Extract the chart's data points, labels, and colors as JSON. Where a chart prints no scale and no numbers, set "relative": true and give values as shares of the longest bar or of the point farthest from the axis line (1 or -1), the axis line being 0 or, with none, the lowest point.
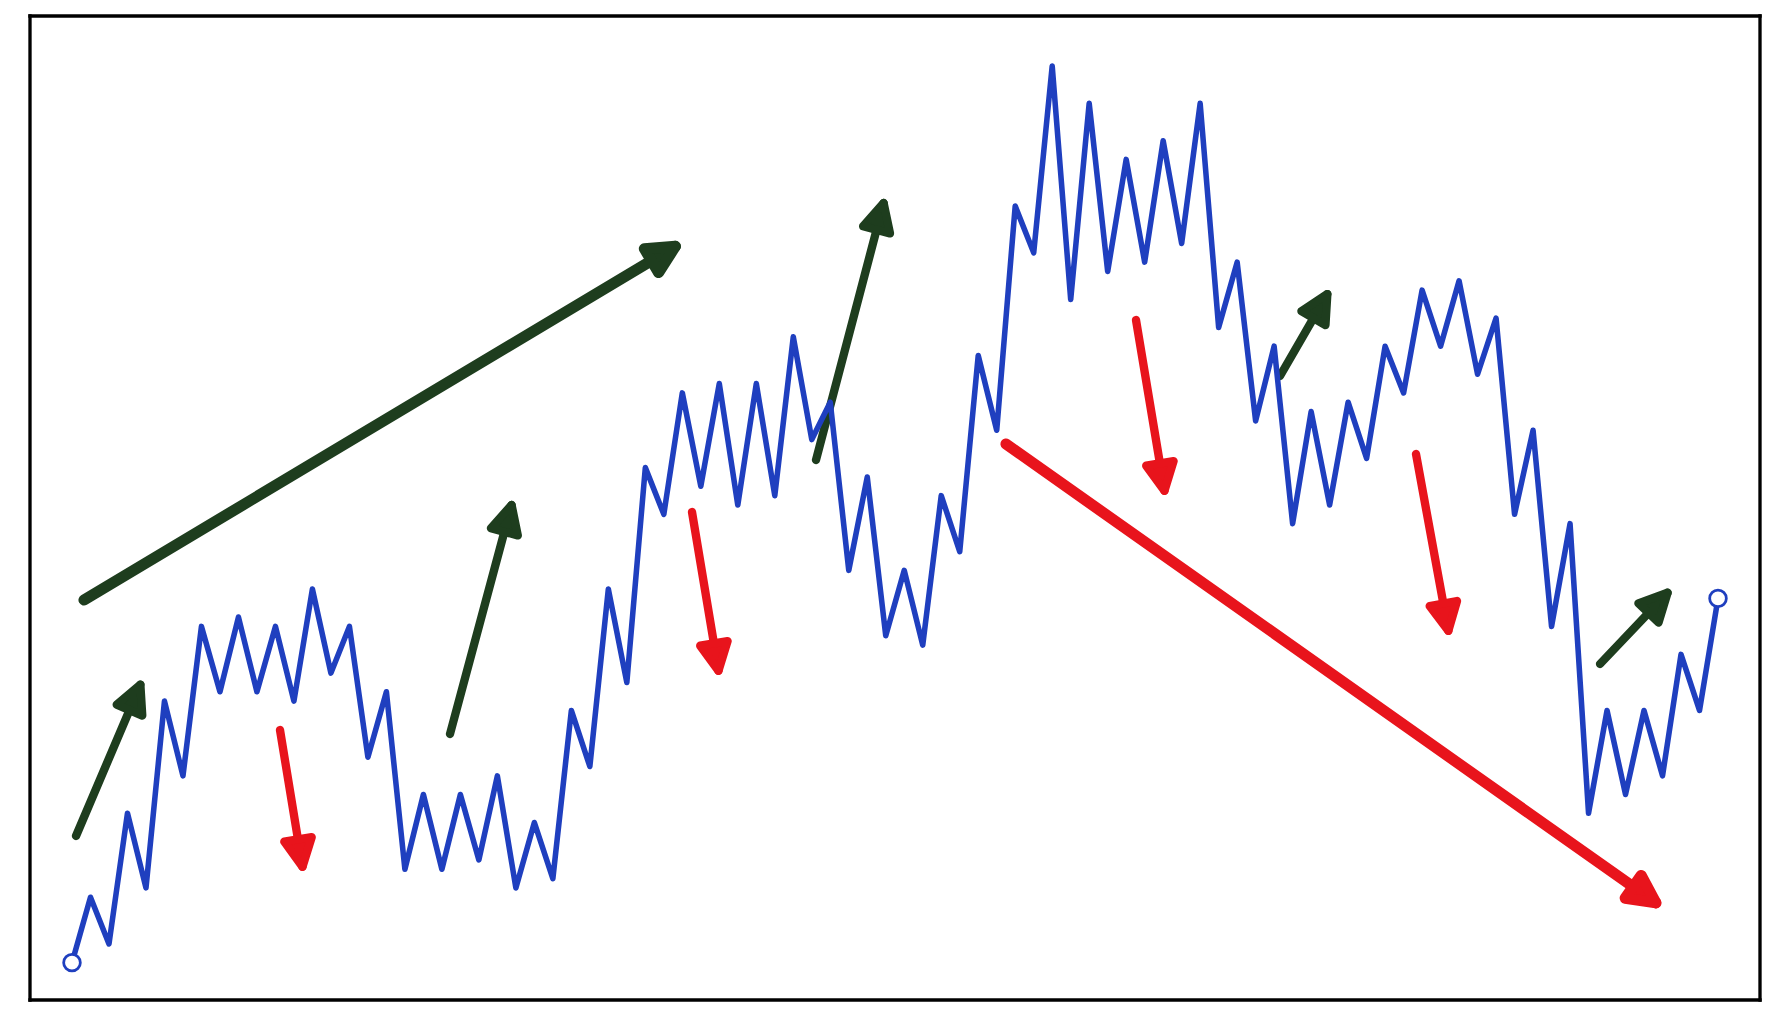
{
  "chart_data": {
    "type": "line",
    "relative": true,
    "line_style": "solid",
    "categories": [
      null,
      null,
      null,
      null,
      null,
      null,
      null,
      null,
      null,
      null,
      null,
      null,
      null,
      null,
      null,
      null,
      null,
      null,
      null,
      null,
      null,
      null,
      null,
      null,
      null,
      null,
      null,
      null,
      null,
      null,
      null,
      null,
      null,
      null,
      null,
      null,
      null,
      null,
      null,
      null,
      null,
      null,
      null,
      null,
      null,
      null,
      null,
      null,
      null,
      null,
      null,
      null,
      null,
      null,
      null,
      null,
      null,
      null,
      null,
      null,
      null,
      null,
      null,
      null,
      null,
      null,
      null,
      null,
      null,
      null,
      null,
      null,
      null,
      null,
      null,
      null,
      null,
      null,
      null,
      null,
      null,
      null,
      null,
      null,
      null,
      null,
      null,
      null,
      null,
      null
    ],
    "series": [
      {
        "color": "#1f3fbf",
        "values": [
          0.04,
          0.11,
          0.06,
          0.2,
          0.12,
          0.32,
          0.24,
          0.4,
          0.33,
          0.41,
          0.33,
          0.4,
          0.32,
          0.44,
          0.35,
          0.4,
          0.26,
          0.33,
          0.14,
          0.22,
          0.14,
          0.22,
          0.15,
          0.24,
          0.12,
          0.19,
          0.13,
          0.31,
          0.25,
          0.44,
          0.34,
          0.57,
          0.52,
          0.65,
          0.55,
          0.66,
          0.53,
          0.66,
          0.54,
          0.71,
          0.6,
          0.64,
          0.46,
          0.56,
          0.39,
          0.46,
          0.38,
          0.54,
          0.48,
          0.69,
          0.61,
          0.85,
          0.8,
          1.0,
          0.75,
          0.96,
          0.78,
          0.9,
          0.79,
          0.92,
          0.81,
          0.96,
          0.72,
          0.79,
          0.62,
          0.7,
          0.51,
          0.63,
          0.53,
          0.64,
          0.58,
          0.7,
          0.65,
          0.76,
          0.7,
          0.77,
          0.67,
          0.73,
          0.52,
          0.61,
          0.4,
          0.51,
          0.2,
          0.31,
          0.22,
          0.31,
          0.24,
          0.37,
          0.31,
          0.43
        ]
      }
    ]
  }
}
